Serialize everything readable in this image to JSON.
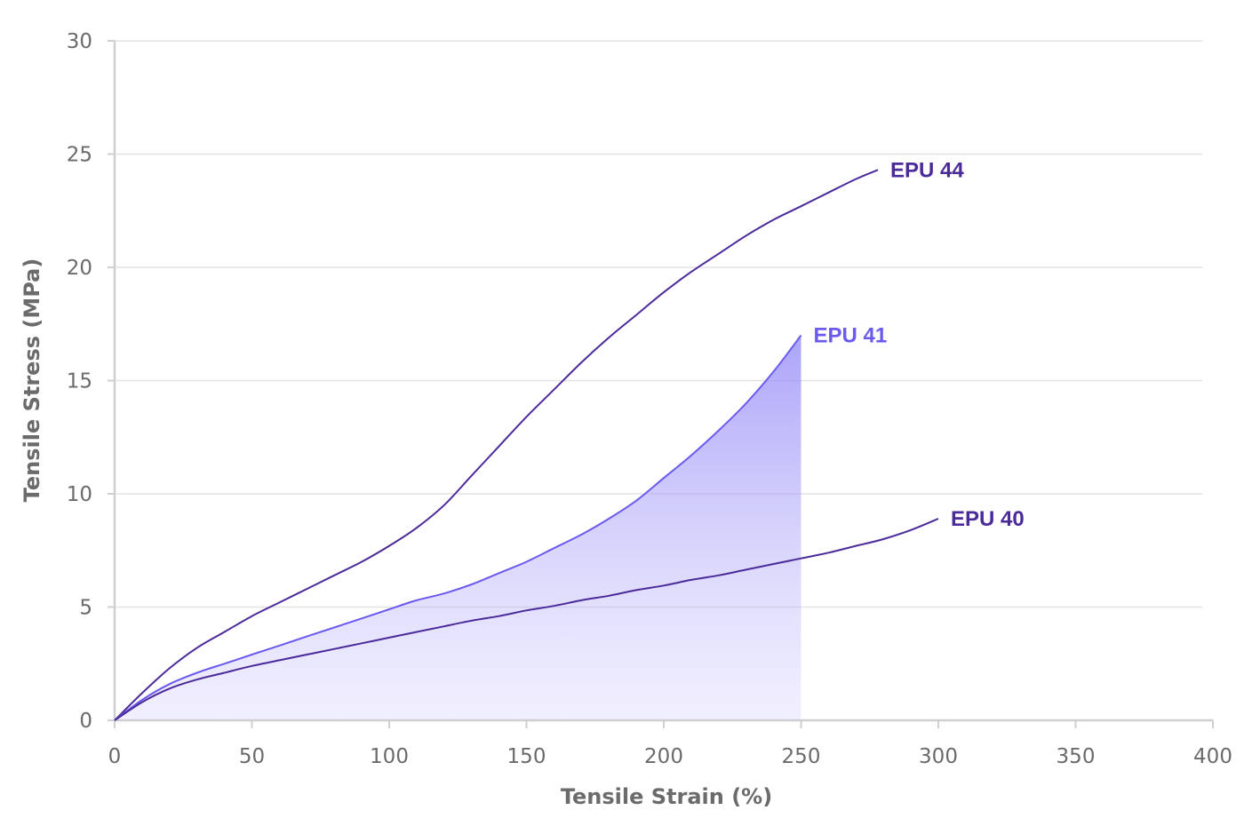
{
  "chart_data": {
    "type": "line",
    "title": "",
    "xlabel": "Tensile Strain (%)",
    "ylabel": "Tensile Stress (MPa)",
    "xlim": [
      0,
      400
    ],
    "ylim": [
      0,
      30
    ],
    "x_ticks": [
      "0",
      "50",
      "100",
      "150",
      "200",
      "250",
      "300",
      "350",
      "400"
    ],
    "y_ticks": [
      "0",
      "5",
      "10",
      "15",
      "20",
      "25",
      "30"
    ],
    "grid": "horizontal",
    "legend": "inline labels at line ends",
    "series": [
      {
        "name": "EPU 44",
        "color": "#4b2a9a",
        "filled": false,
        "points": [
          [
            0,
            0
          ],
          [
            10,
            1.2
          ],
          [
            20,
            2.3
          ],
          [
            30,
            3.2
          ],
          [
            40,
            3.9
          ],
          [
            50,
            4.6
          ],
          [
            60,
            5.2
          ],
          [
            70,
            5.8
          ],
          [
            80,
            6.4
          ],
          [
            90,
            7.0
          ],
          [
            100,
            7.7
          ],
          [
            110,
            8.5
          ],
          [
            120,
            9.5
          ],
          [
            130,
            10.8
          ],
          [
            140,
            12.1
          ],
          [
            150,
            13.4
          ],
          [
            160,
            14.6
          ],
          [
            170,
            15.8
          ],
          [
            180,
            16.9
          ],
          [
            190,
            17.9
          ],
          [
            200,
            18.9
          ],
          [
            210,
            19.8
          ],
          [
            220,
            20.6
          ],
          [
            230,
            21.4
          ],
          [
            240,
            22.1
          ],
          [
            250,
            22.7
          ],
          [
            260,
            23.3
          ],
          [
            270,
            23.9
          ],
          [
            278,
            24.3
          ]
        ]
      },
      {
        "name": "EPU 41",
        "color": "#6a5af0",
        "filled": true,
        "points": [
          [
            0,
            0
          ],
          [
            10,
            0.9
          ],
          [
            20,
            1.6
          ],
          [
            30,
            2.1
          ],
          [
            40,
            2.5
          ],
          [
            50,
            2.9
          ],
          [
            60,
            3.3
          ],
          [
            70,
            3.7
          ],
          [
            80,
            4.1
          ],
          [
            90,
            4.5
          ],
          [
            100,
            4.9
          ],
          [
            110,
            5.3
          ],
          [
            120,
            5.6
          ],
          [
            130,
            6.0
          ],
          [
            140,
            6.5
          ],
          [
            150,
            7.0
          ],
          [
            160,
            7.6
          ],
          [
            170,
            8.2
          ],
          [
            180,
            8.9
          ],
          [
            190,
            9.7
          ],
          [
            200,
            10.7
          ],
          [
            210,
            11.7
          ],
          [
            220,
            12.8
          ],
          [
            230,
            14.0
          ],
          [
            240,
            15.4
          ],
          [
            250,
            17.0
          ]
        ]
      },
      {
        "name": "EPU 40",
        "color": "#4b2a9a",
        "filled": false,
        "points": [
          [
            0,
            0
          ],
          [
            10,
            0.8
          ],
          [
            20,
            1.4
          ],
          [
            30,
            1.8
          ],
          [
            40,
            2.1
          ],
          [
            50,
            2.4
          ],
          [
            60,
            2.65
          ],
          [
            70,
            2.9
          ],
          [
            80,
            3.15
          ],
          [
            90,
            3.4
          ],
          [
            100,
            3.65
          ],
          [
            110,
            3.9
          ],
          [
            120,
            4.15
          ],
          [
            130,
            4.4
          ],
          [
            140,
            4.6
          ],
          [
            150,
            4.85
          ],
          [
            160,
            5.05
          ],
          [
            170,
            5.3
          ],
          [
            180,
            5.5
          ],
          [
            190,
            5.75
          ],
          [
            200,
            5.95
          ],
          [
            210,
            6.2
          ],
          [
            220,
            6.4
          ],
          [
            230,
            6.65
          ],
          [
            240,
            6.9
          ],
          [
            250,
            7.15
          ],
          [
            260,
            7.4
          ],
          [
            270,
            7.7
          ],
          [
            280,
            8.0
          ],
          [
            290,
            8.4
          ],
          [
            300,
            8.9
          ]
        ]
      }
    ]
  }
}
